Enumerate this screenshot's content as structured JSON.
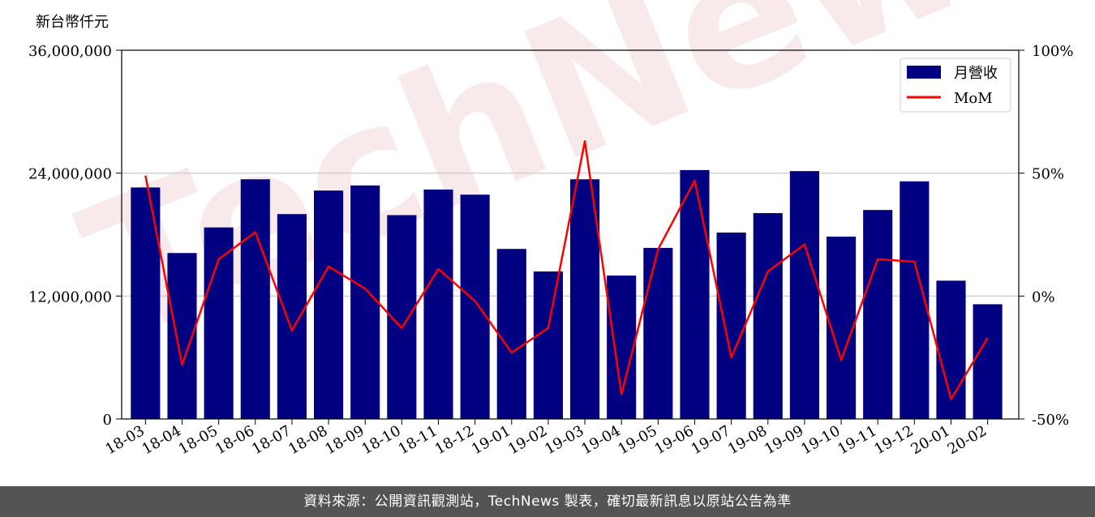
{
  "footer": {
    "text": "資料來源：公開資訊觀測站，TechNews 製表，確切最新訊息以原站公告為準"
  },
  "watermark": "TechNews",
  "chart_data": {
    "type": "bar",
    "ylabel": "新台幣仟元",
    "categories": [
      "18-03",
      "18-04",
      "18-05",
      "18-06",
      "18-07",
      "18-08",
      "18-09",
      "18-10",
      "18-11",
      "18-12",
      "19-01",
      "19-02",
      "19-03",
      "19-04",
      "19-05",
      "19-06",
      "19-07",
      "19-08",
      "19-09",
      "19-10",
      "19-11",
      "19-12",
      "20-01",
      "20-02"
    ],
    "y_ticks": [
      "0",
      "12,000,000",
      "24,000,000",
      "36,000,000"
    ],
    "y2_ticks": [
      "-50%",
      "0%",
      "50%",
      "100%"
    ],
    "ylim": [
      0,
      36000000
    ],
    "y2lim": [
      -50,
      100
    ],
    "grid": "horizontal",
    "legend_position": "top-right",
    "series": [
      {
        "name": "月營收",
        "type": "bar",
        "axis": "left",
        "color": "#000080",
        "values": [
          22600000,
          16200000,
          18700000,
          23400000,
          20000000,
          22300000,
          22800000,
          19900000,
          22400000,
          21900000,
          16600000,
          14400000,
          23400000,
          14000000,
          16700000,
          24300000,
          18200000,
          20100000,
          24200000,
          17800000,
          20400000,
          23200000,
          13500000,
          11200000
        ]
      },
      {
        "name": "MoM",
        "type": "line",
        "axis": "right",
        "color": "#ff0000",
        "values": [
          49,
          -28,
          15,
          26,
          -14,
          12,
          3,
          -13,
          11,
          -2,
          -23,
          -13,
          63,
          -40,
          19,
          47,
          -25,
          10,
          21,
          -26,
          15,
          14,
          -42,
          -17
        ]
      }
    ]
  }
}
